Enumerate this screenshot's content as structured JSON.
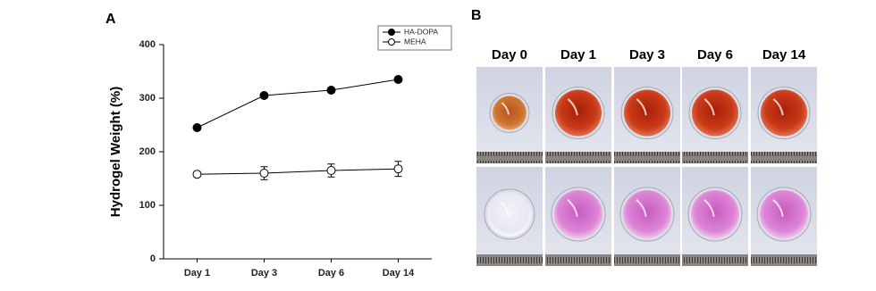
{
  "chart_data": {
    "type": "line",
    "panel_label": "A",
    "y_label": "Hydrogel Weight (%)",
    "categories": [
      "Day 1",
      "Day 3",
      "Day 6",
      "Day 14"
    ],
    "series": [
      {
        "name": "HA-DOPA",
        "color": "#000000",
        "marker": "filled",
        "values": [
          245,
          305,
          315,
          335
        ]
      },
      {
        "name": "MEHA",
        "color": "#000000",
        "marker": "hollow",
        "values": [
          158,
          160,
          165,
          168
        ],
        "errors": [
          5,
          12,
          12,
          14
        ]
      }
    ],
    "ylim": [
      0,
      400
    ],
    "yticks": [
      0,
      100,
      200,
      300,
      400
    ],
    "grid": false,
    "legend": "top-right"
  },
  "panel_b": {
    "panel_label": "B",
    "columns": [
      "Day 0",
      "Day 1",
      "Day 3",
      "Day 6",
      "Day 14"
    ]
  }
}
